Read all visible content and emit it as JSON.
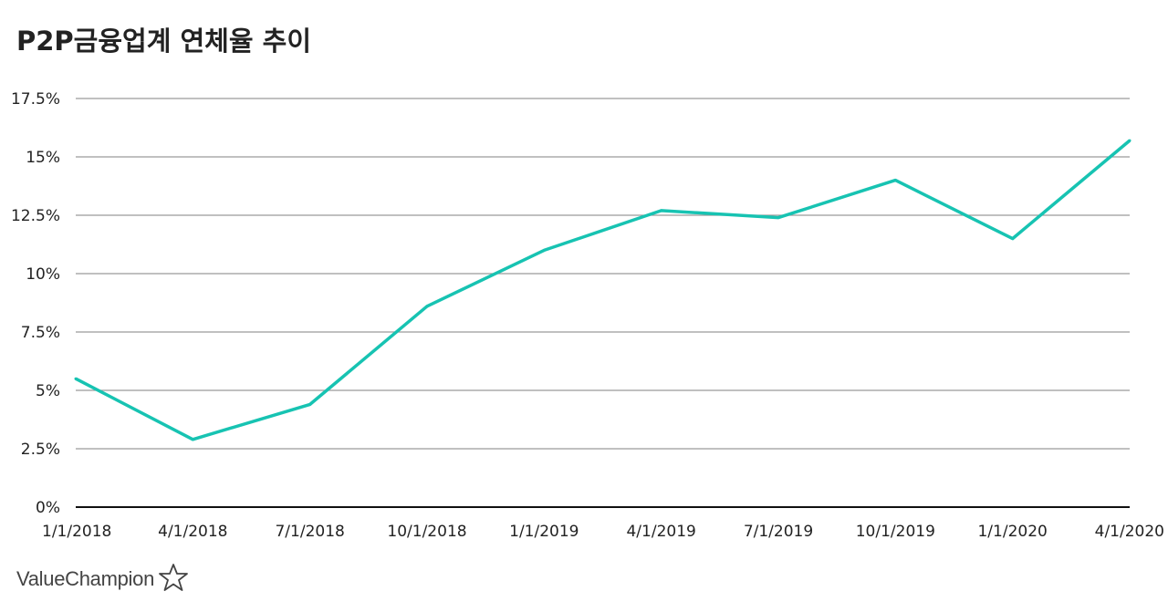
{
  "chart_data": {
    "type": "line",
    "title": "P2P금융업계 연체율 추이",
    "categories": [
      "1/1/2018",
      "4/1/2018",
      "7/1/2018",
      "10/1/2018",
      "1/1/2019",
      "4/1/2019",
      "7/1/2019",
      "10/1/2019",
      "1/1/2020",
      "4/1/2020"
    ],
    "series": [
      {
        "values": [
          5.5,
          2.9,
          4.4,
          8.6,
          11.0,
          12.7,
          12.4,
          14.0,
          11.5,
          15.7
        ]
      }
    ],
    "ylim": [
      0,
      17.5
    ],
    "yticks": [
      0,
      2.5,
      5,
      7.5,
      10,
      12.5,
      15,
      17.5
    ],
    "ytick_labels": [
      "0%",
      "2.5%",
      "5%",
      "7.5%",
      "10%",
      "12.5%",
      "15%",
      "17.5%"
    ],
    "xlabel": "",
    "ylabel": "",
    "grid": true,
    "legend": "none",
    "line_color": "#17c3b2",
    "grid_color": "#9a9a9a",
    "axis_color": "#111111"
  },
  "branding": {
    "logo_text": "ValueChampion",
    "icon": "star-outline-icon"
  }
}
